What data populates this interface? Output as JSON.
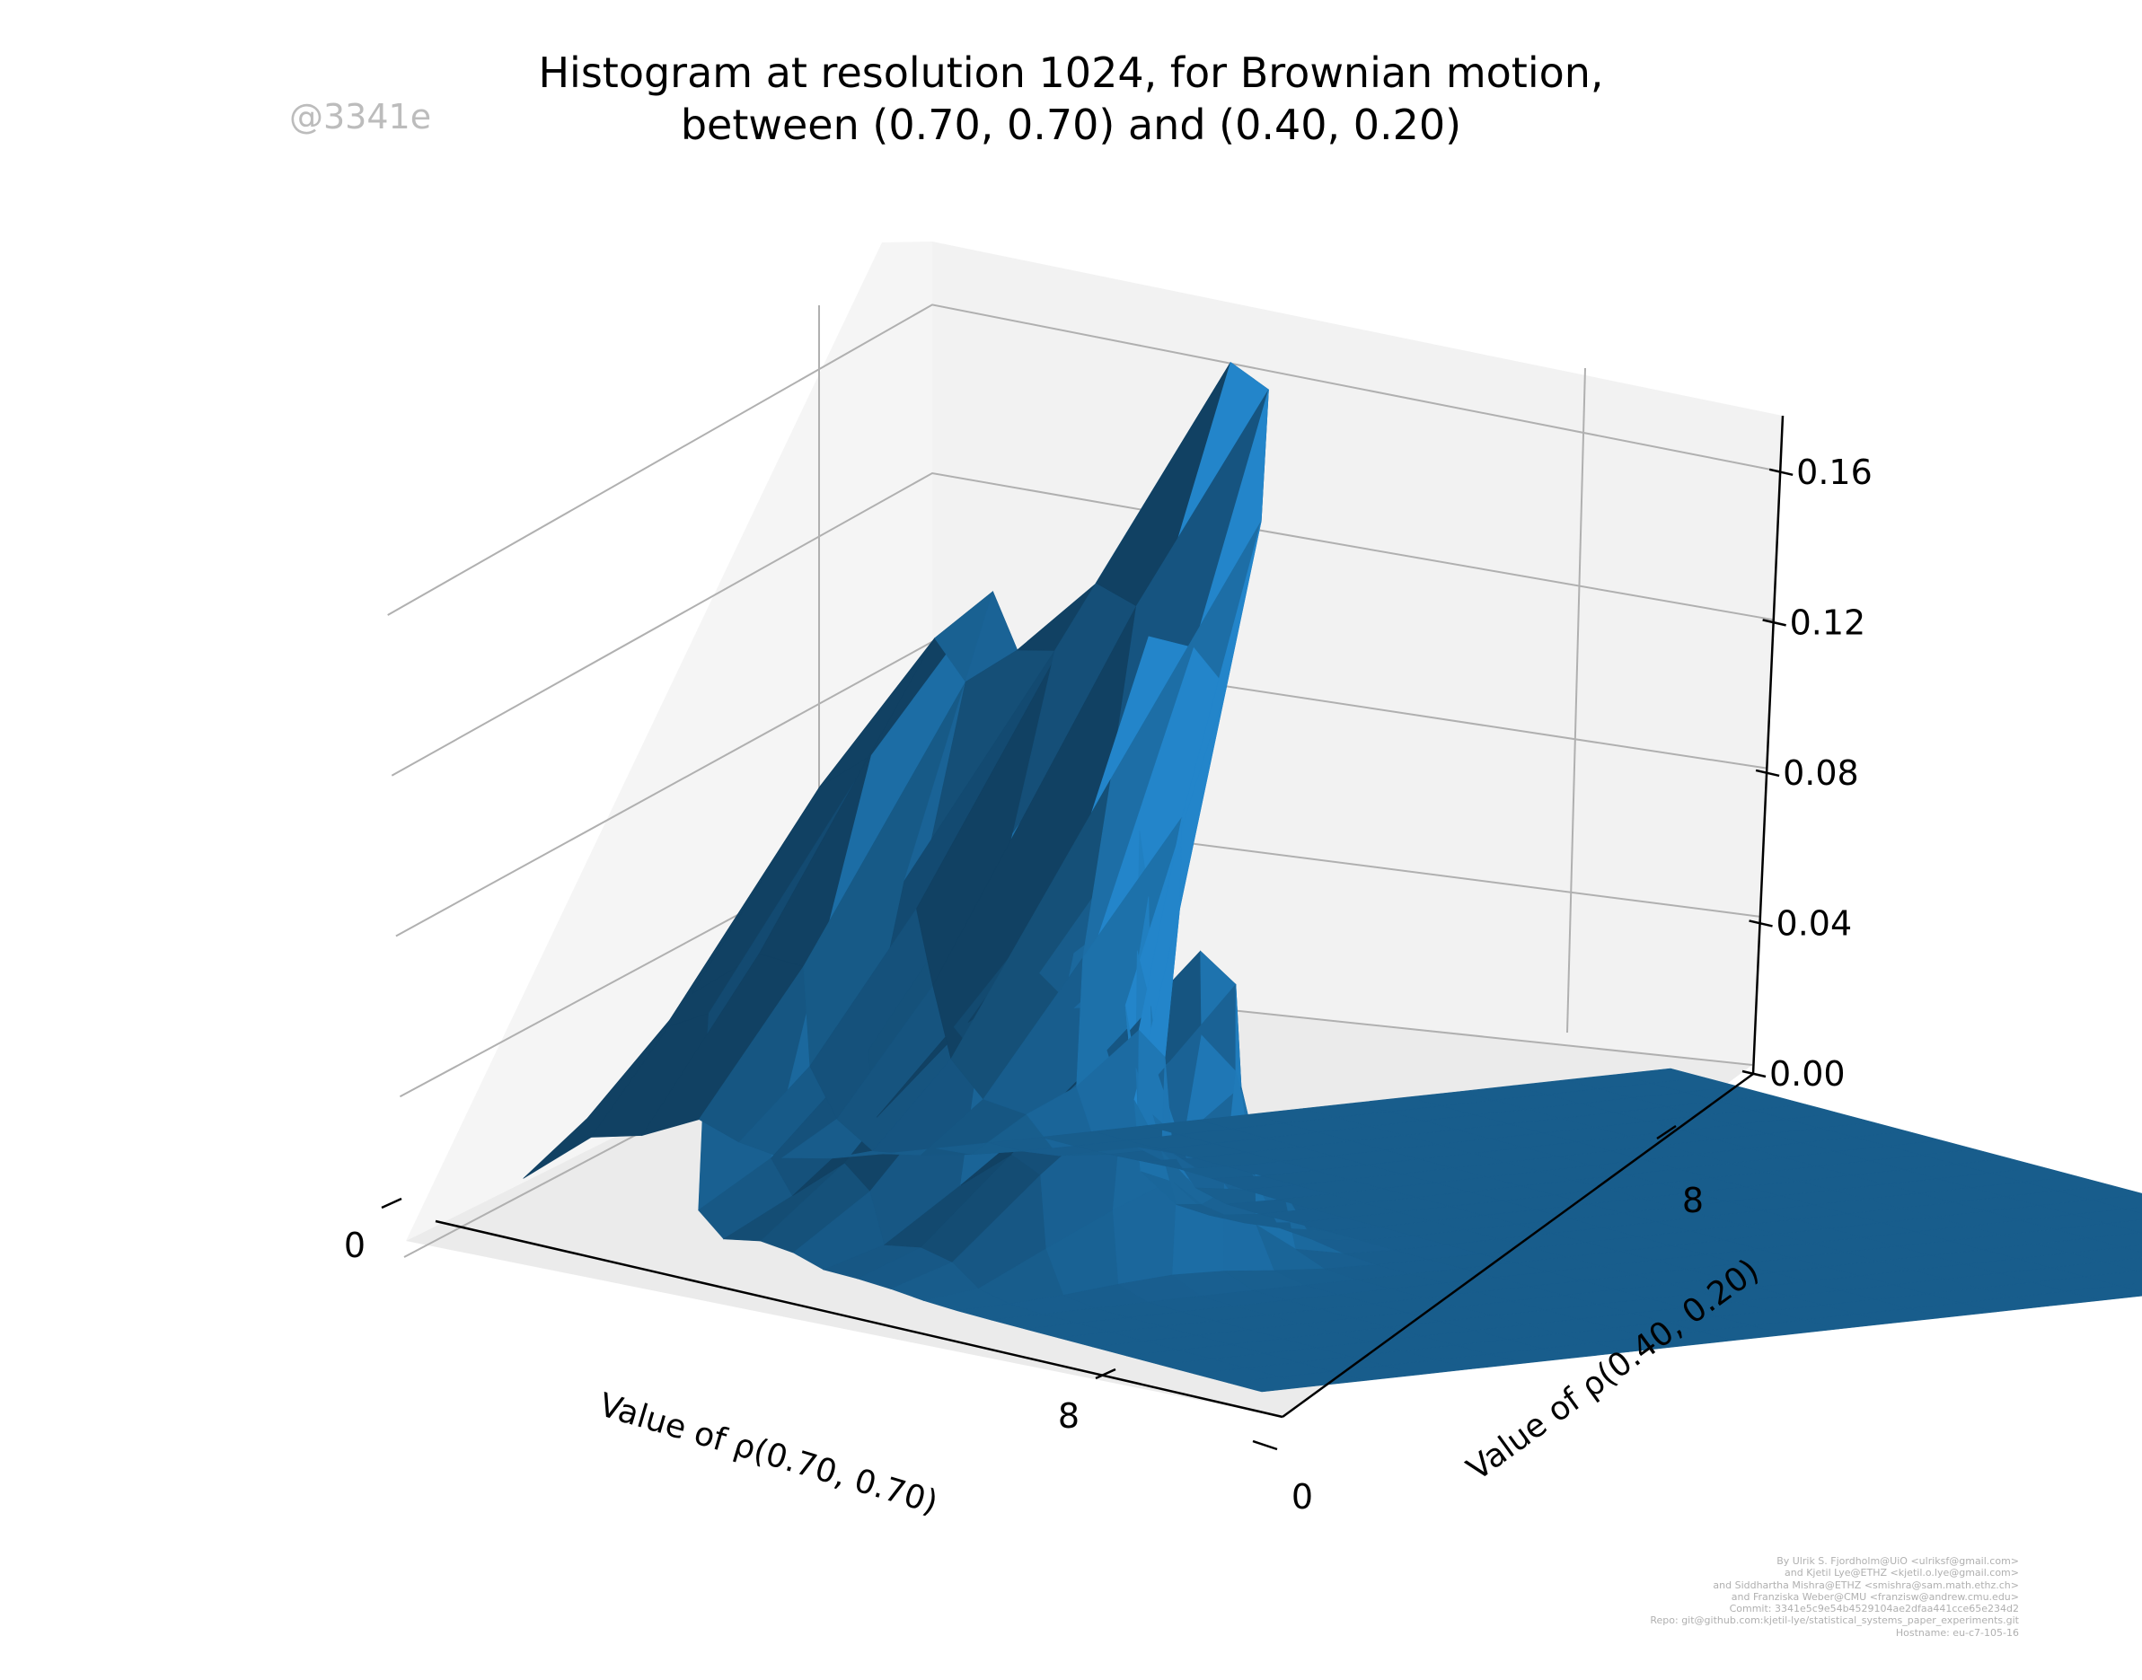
{
  "title_line1": "Histogram at resolution 1024, for Brownian motion,",
  "title_line2": "between (0.70, 0.70) and (0.40, 0.20)",
  "watermark": "@3341e",
  "credits": [
    "By Ulrik S. Fjordholm@UiO <ulriksf@gmail.com>",
    "and Kjetil Lye@ETHZ <kjetil.o.lye@gmail.com>",
    "and Siddhartha Mishra@ETHZ <smishra@sam.math.ethz.ch>",
    "and Franziska Weber@CMU <franzisw@andrew.cmu.edu>",
    "Commit: 3341e5c9e54b4529104ae2dfaa441cce65e234d2",
    "Repo: git@github.com:kjetil-lye/statistical_systems_paper_experiments.git",
    "Hostname: eu-c7-105-16"
  ],
  "colors": {
    "surface": "#1f77b4",
    "pane": "#f2f2f2",
    "grid": "#b0b0b0"
  },
  "chart_data": {
    "type": "surface",
    "title": "Histogram at resolution 1024, for Brownian motion, between (0.70, 0.70) and (0.40, 0.20)",
    "xlabel": "Value of ρ(0.70, 0.70)",
    "ylabel": "Value of ρ(0.40, 0.20)",
    "zlabel": "",
    "x_ticks": [
      "0",
      "8"
    ],
    "y_ticks": [
      "0",
      "8"
    ],
    "z_ticks": [
      "0.00",
      "0.04",
      "0.08",
      "0.12",
      "0.16"
    ],
    "xlim": [
      0,
      10
    ],
    "ylim": [
      0,
      10
    ],
    "zlim": [
      0,
      0.175
    ],
    "grid": true,
    "peak": {
      "x": 1.8,
      "y": 8.0,
      "z": 0.16
    },
    "secondary_peaks": [
      {
        "x": 1.9,
        "y": 7.6,
        "z": 0.135
      },
      {
        "x": 1.2,
        "y": 9.0,
        "z": 0.12
      },
      {
        "x": 3.3,
        "y": 8.3,
        "z": 0.075
      },
      {
        "x": 4.6,
        "y": 8.1,
        "z": 0.055
      }
    ]
  }
}
